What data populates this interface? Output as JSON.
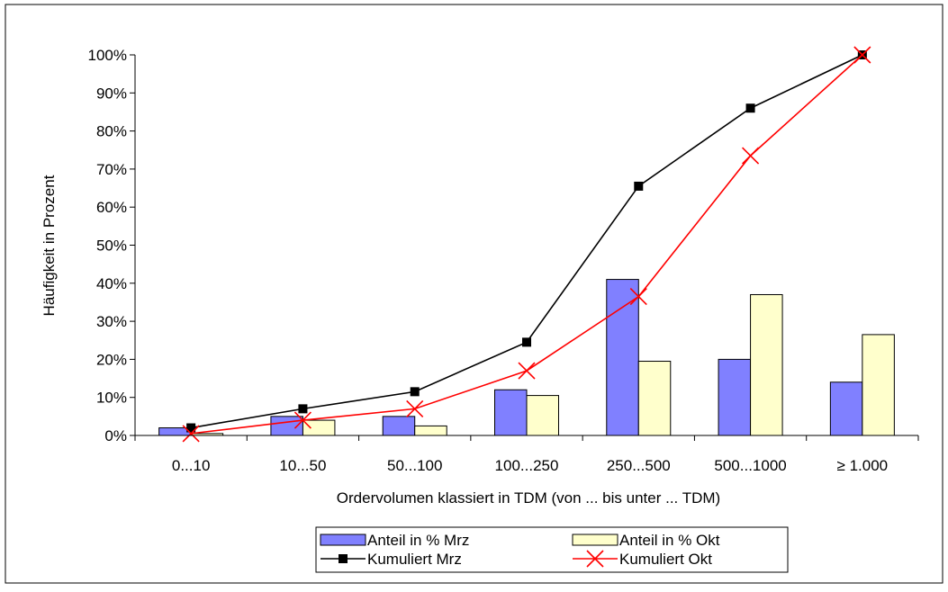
{
  "chart_data": {
    "type": "bar",
    "title": "",
    "xlabel": "Ordervolumen klassiert in TDM (von ... bis unter ... TDM)",
    "ylabel": "Häufigkeit in Prozent",
    "categories": [
      "0...10",
      "10...50",
      "50...100",
      "100...250",
      "250...500",
      "500...1000",
      "≥ 1.000"
    ],
    "ylim": [
      0,
      100
    ],
    "yticks": [
      0,
      10,
      20,
      30,
      40,
      50,
      60,
      70,
      80,
      90,
      100
    ],
    "ytick_suffix": "%",
    "grid": false,
    "legend_position": "bottom",
    "series": [
      {
        "name": "Anteil in % Mrz",
        "kind": "bar",
        "color": "#8080ff",
        "values": [
          2,
          5,
          5,
          12,
          41,
          20,
          14
        ]
      },
      {
        "name": "Anteil in % Okt",
        "kind": "bar",
        "color": "#ffffcc",
        "values": [
          0.5,
          4,
          2.5,
          10.5,
          19.5,
          37,
          26.5
        ]
      },
      {
        "name": "Kumuliert Mrz",
        "kind": "line",
        "marker": "square",
        "color": "#000000",
        "values": [
          2,
          7,
          11.5,
          24.5,
          65.5,
          86,
          100
        ]
      },
      {
        "name": "Kumuliert Okt",
        "kind": "line",
        "marker": "x",
        "color": "#ff0000",
        "values": [
          0.5,
          4,
          7,
          17,
          36.5,
          73.5,
          100
        ]
      }
    ]
  }
}
